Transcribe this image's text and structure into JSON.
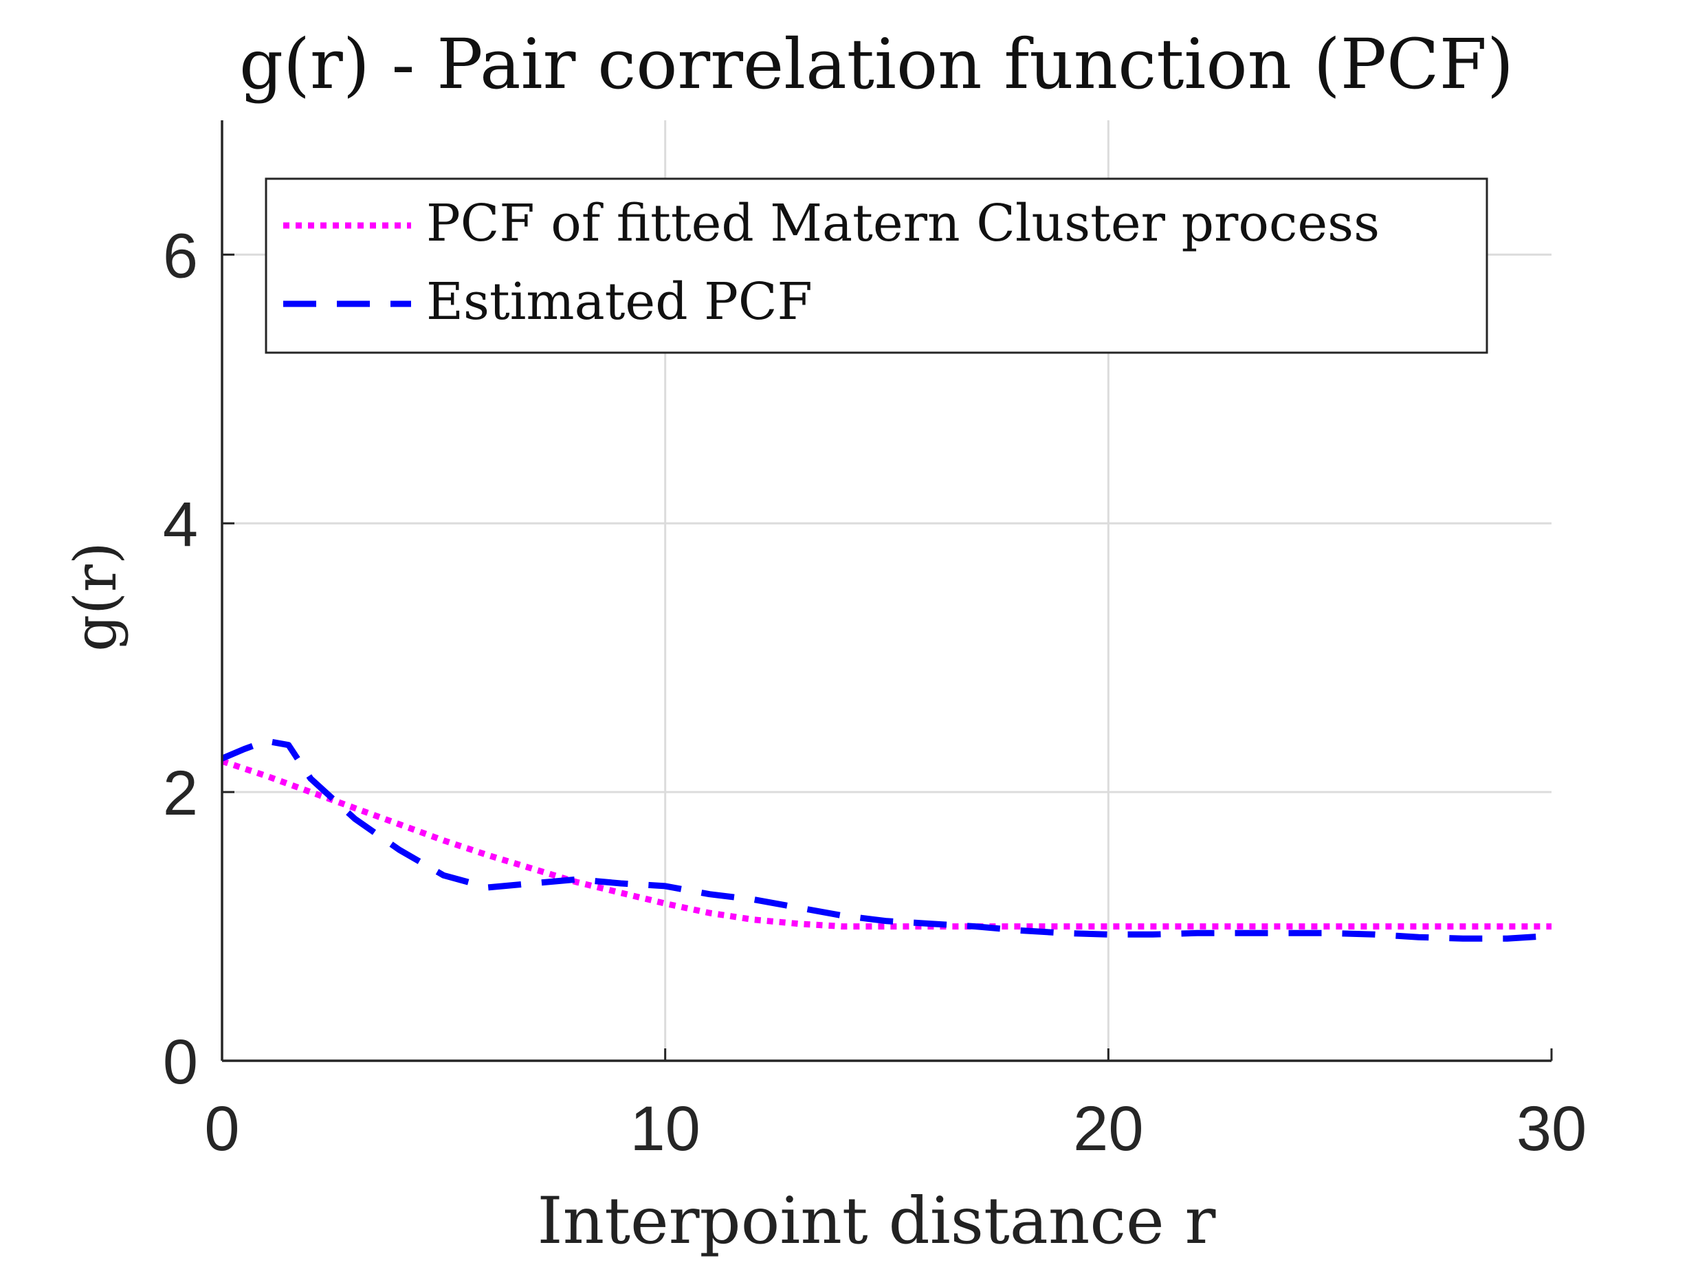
{
  "chart_data": {
    "type": "line",
    "title": "g(r) - Pair correlation function (PCF)",
    "xlabel": "Interpoint distance r",
    "ylabel": "g(r)",
    "xlim": [
      0,
      30
    ],
    "ylim": [
      0,
      7
    ],
    "xticks": [
      0,
      10,
      20,
      30
    ],
    "yticks": [
      0,
      2,
      4,
      6
    ],
    "xtick_labels": [
      "0",
      "10",
      "20",
      "30"
    ],
    "ytick_labels": [
      "0",
      "2",
      "4",
      "6"
    ],
    "grid": true,
    "legend_position": "top",
    "series": [
      {
        "name": "PCF of fitted Matern Cluster process",
        "color": "#ff00ff",
        "style": "dotted",
        "x": [
          0,
          1,
          2,
          3,
          4,
          5,
          6,
          7,
          8,
          9,
          10,
          11,
          12,
          13,
          14,
          15,
          16,
          17,
          18,
          20,
          22,
          24,
          26,
          28,
          30
        ],
        "y": [
          2.23,
          2.12,
          2.0,
          1.88,
          1.76,
          1.64,
          1.53,
          1.43,
          1.33,
          1.25,
          1.17,
          1.1,
          1.05,
          1.02,
          1.0,
          1.0,
          1.0,
          1.0,
          1.0,
          1.0,
          1.0,
          1.0,
          1.0,
          1.0,
          1.0
        ]
      },
      {
        "name": "Estimated PCF",
        "color": "#0000ff",
        "style": "dashed",
        "x": [
          0,
          0.5,
          1,
          1.5,
          2,
          3,
          4,
          5,
          6,
          7,
          8,
          9,
          10,
          11,
          12,
          13,
          14,
          15,
          16,
          17,
          18,
          19,
          20,
          21,
          22,
          23,
          24,
          25,
          26,
          27,
          28,
          29,
          30
        ],
        "y": [
          2.25,
          2.32,
          2.38,
          2.35,
          2.1,
          1.8,
          1.57,
          1.38,
          1.29,
          1.32,
          1.35,
          1.32,
          1.3,
          1.24,
          1.2,
          1.14,
          1.08,
          1.04,
          1.02,
          1.0,
          0.97,
          0.95,
          0.94,
          0.94,
          0.95,
          0.95,
          0.95,
          0.95,
          0.94,
          0.92,
          0.91,
          0.91,
          0.93
        ]
      }
    ]
  }
}
